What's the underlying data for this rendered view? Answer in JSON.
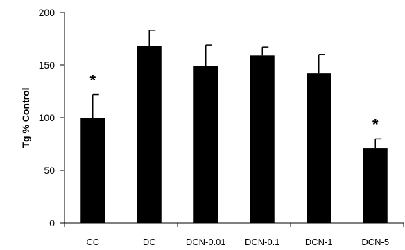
{
  "chart_data": {
    "type": "bar",
    "categories": [
      "CC",
      "DC",
      "DCN-0.01",
      "DCN-0.1",
      "DCN-1",
      "DCN-5"
    ],
    "values": [
      100,
      168,
      149,
      159,
      142,
      71
    ],
    "errors": [
      22,
      15,
      20,
      8,
      18,
      9
    ],
    "significance": [
      "*",
      "",
      "",
      "",
      "",
      "*"
    ],
    "ylabel": "Tg % Control",
    "xlabel": "",
    "ylim": [
      0,
      200
    ],
    "yticks": [
      0,
      50,
      100,
      150,
      200
    ],
    "bar_color": "#000000",
    "grid": false,
    "legend": "none"
  }
}
